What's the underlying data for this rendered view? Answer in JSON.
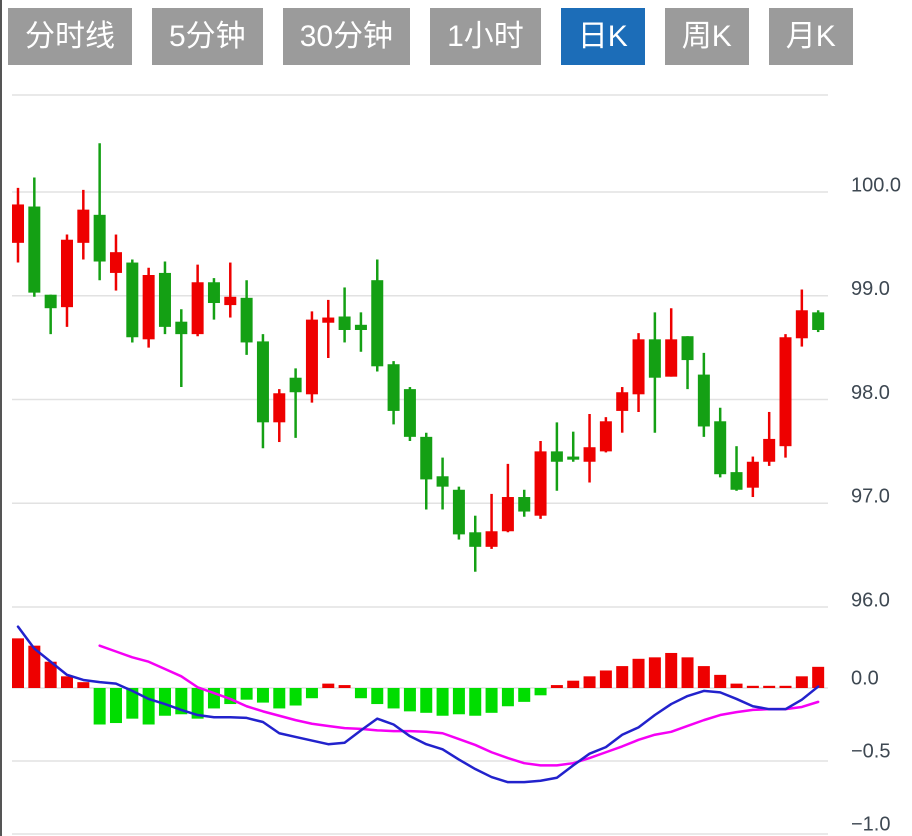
{
  "tabs": {
    "items": [
      {
        "label": "分时线",
        "active": false
      },
      {
        "label": "5分钟",
        "active": false
      },
      {
        "label": "30分钟",
        "active": false
      },
      {
        "label": "1小时",
        "active": false
      },
      {
        "label": "日K",
        "active": true
      },
      {
        "label": "周K",
        "active": false
      },
      {
        "label": "月K",
        "active": false
      }
    ]
  },
  "colors": {
    "tab_inactive_bg": "#9b9b9b",
    "tab_active_bg": "#1c6db8",
    "tab_text": "#ffffff",
    "candle_up": "#ee0000",
    "candle_down": "#14a014",
    "hist_up": "#ee0000",
    "hist_down": "#00dd00",
    "dif_line": "#2222cc",
    "dea_line": "#f500f5",
    "grid": "#e2e2e2",
    "axis_text": "#3e4852",
    "page_left_border": "#555555"
  },
  "chart_data": {
    "type": "candlestick",
    "title": "",
    "xlabel": "",
    "ylabel": "",
    "grid": true,
    "x_count": 50,
    "price_panel": {
      "tick_values": [
        100.0,
        99.0,
        98.0,
        97.0,
        96.0
      ],
      "tick_labels": [
        "100.0",
        "99.0",
        "98.0",
        "97.0",
        "96.0"
      ],
      "ylim": [
        95.8,
        100.95
      ],
      "ohlc_order": "open,high,low,close",
      "candles": [
        [
          99.51,
          100.04,
          99.32,
          99.88
        ],
        [
          99.86,
          100.14,
          98.99,
          99.03
        ],
        [
          99.01,
          99.01,
          98.63,
          98.88
        ],
        [
          98.89,
          99.59,
          98.7,
          99.54
        ],
        [
          99.51,
          100.02,
          99.35,
          99.83
        ],
        [
          99.78,
          100.47,
          99.15,
          99.33
        ],
        [
          99.22,
          99.59,
          99.05,
          99.42
        ],
        [
          99.32,
          99.35,
          98.55,
          98.6
        ],
        [
          98.58,
          99.27,
          98.5,
          99.2
        ],
        [
          99.22,
          99.33,
          98.63,
          98.7
        ],
        [
          98.75,
          98.87,
          98.12,
          98.63
        ],
        [
          98.63,
          99.3,
          98.61,
          99.13
        ],
        [
          99.13,
          99.17,
          98.77,
          98.93
        ],
        [
          98.91,
          99.32,
          98.79,
          98.99
        ],
        [
          98.98,
          99.15,
          98.43,
          98.55
        ],
        [
          98.56,
          98.63,
          97.53,
          97.78
        ],
        [
          97.78,
          98.1,
          97.59,
          98.06
        ],
        [
          98.21,
          98.3,
          97.63,
          98.07
        ],
        [
          98.05,
          98.85,
          97.97,
          98.77
        ],
        [
          98.74,
          98.96,
          98.4,
          98.79
        ],
        [
          98.8,
          99.08,
          98.55,
          98.67
        ],
        [
          98.72,
          98.84,
          98.46,
          98.67
        ],
        [
          99.15,
          99.35,
          98.27,
          98.32
        ],
        [
          98.34,
          98.37,
          97.76,
          97.89
        ],
        [
          98.1,
          98.12,
          97.6,
          97.64
        ],
        [
          97.64,
          97.68,
          96.94,
          97.23
        ],
        [
          97.26,
          97.44,
          96.94,
          97.16
        ],
        [
          97.13,
          97.16,
          96.65,
          96.7
        ],
        [
          96.72,
          96.88,
          96.34,
          96.58
        ],
        [
          96.58,
          97.09,
          96.56,
          96.73
        ],
        [
          96.73,
          97.38,
          96.72,
          97.06
        ],
        [
          97.06,
          97.13,
          96.87,
          96.92
        ],
        [
          96.88,
          97.6,
          96.85,
          97.5
        ],
        [
          97.5,
          97.78,
          97.12,
          97.4
        ],
        [
          97.45,
          97.69,
          97.4,
          97.42
        ],
        [
          97.4,
          97.86,
          97.2,
          97.54
        ],
        [
          97.5,
          97.83,
          97.49,
          97.79
        ],
        [
          97.89,
          98.12,
          97.68,
          98.07
        ],
        [
          98.05,
          98.64,
          97.88,
          98.58
        ],
        [
          98.58,
          98.84,
          97.68,
          98.21
        ],
        [
          98.22,
          98.88,
          98.22,
          98.58
        ],
        [
          98.61,
          98.61,
          98.1,
          98.38
        ],
        [
          98.24,
          98.45,
          97.64,
          97.74
        ],
        [
          97.79,
          97.92,
          97.25,
          97.28
        ],
        [
          97.3,
          97.55,
          97.12,
          97.13
        ],
        [
          97.15,
          97.45,
          97.06,
          97.4
        ],
        [
          97.4,
          97.88,
          97.36,
          97.62
        ],
        [
          97.55,
          98.63,
          97.44,
          98.6
        ],
        [
          98.59,
          99.06,
          98.51,
          98.86
        ],
        [
          98.84,
          98.86,
          98.65,
          98.67
        ]
      ]
    },
    "macd_panel": {
      "tick_values": [
        0.0,
        -0.5,
        -1.0
      ],
      "tick_labels": [
        "0.0",
        "−0.5",
        "−1.0"
      ],
      "ylim": [
        -1.0,
        0.45
      ],
      "histogram": [
        0.34,
        0.29,
        0.18,
        0.08,
        0.04,
        -0.25,
        -0.24,
        -0.21,
        -0.25,
        -0.19,
        -0.18,
        -0.21,
        -0.14,
        -0.11,
        -0.08,
        -0.1,
        -0.14,
        -0.12,
        -0.07,
        0.03,
        0.02,
        -0.07,
        -0.11,
        -0.14,
        -0.16,
        -0.17,
        -0.19,
        -0.18,
        -0.19,
        -0.17,
        -0.125,
        -0.095,
        -0.05,
        0.02,
        0.05,
        0.08,
        0.12,
        0.15,
        0.2,
        0.21,
        0.24,
        0.21,
        0.15,
        0.09,
        0.03,
        0.015,
        0.015,
        0.015,
        0.08,
        0.145
      ],
      "series": [
        {
          "name": "DIF",
          "values": [
            0.42,
            0.27,
            0.18,
            0.09,
            0.055,
            0.04,
            0.03,
            -0.02,
            -0.075,
            -0.11,
            -0.15,
            -0.185,
            -0.2,
            -0.2,
            -0.205,
            -0.233,
            -0.31,
            -0.335,
            -0.36,
            -0.385,
            -0.375,
            -0.29,
            -0.21,
            -0.25,
            -0.33,
            -0.385,
            -0.42,
            -0.49,
            -0.555,
            -0.61,
            -0.645,
            -0.645,
            -0.635,
            -0.615,
            -0.53,
            -0.45,
            -0.405,
            -0.32,
            -0.27,
            -0.185,
            -0.11,
            -0.055,
            -0.02,
            -0.03,
            -0.075,
            -0.125,
            -0.145,
            -0.145,
            -0.08,
            0.01
          ]
        },
        {
          "name": "DEA",
          "values": [
            null,
            null,
            null,
            null,
            null,
            0.29,
            0.25,
            0.21,
            0.18,
            0.13,
            0.08,
            0.005,
            -0.035,
            -0.075,
            -0.125,
            -0.16,
            -0.19,
            -0.22,
            -0.245,
            -0.26,
            -0.275,
            -0.28,
            -0.29,
            -0.295,
            -0.295,
            -0.3,
            -0.31,
            -0.35,
            -0.39,
            -0.44,
            -0.48,
            -0.515,
            -0.53,
            -0.53,
            -0.515,
            -0.48,
            -0.44,
            -0.4,
            -0.355,
            -0.32,
            -0.3,
            -0.26,
            -0.22,
            -0.185,
            -0.165,
            -0.15,
            -0.145,
            -0.145,
            -0.13,
            -0.095
          ]
        }
      ]
    }
  }
}
